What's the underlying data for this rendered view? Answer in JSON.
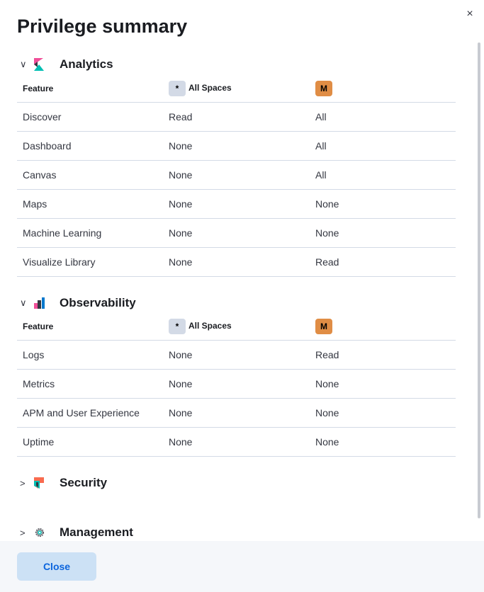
{
  "title": "Privilege summary",
  "close_icon_label": "×",
  "columns": {
    "feature": "Feature",
    "all_spaces_badge": "*",
    "all_spaces": "All Spaces",
    "space_badge": "M"
  },
  "colors": {
    "all_spaces_badge": "#d3dae6",
    "space_badge": "#e08d45",
    "close_button_bg": "#cce1f5",
    "close_button_text": "#0b64dd"
  },
  "sections": [
    {
      "title": "Analytics",
      "icon": "kibana-logo-icon",
      "expanded": true,
      "rows": [
        [
          "Discover",
          "Read",
          "All"
        ],
        [
          "Dashboard",
          "None",
          "All"
        ],
        [
          "Canvas",
          "None",
          "All"
        ],
        [
          "Maps",
          "None",
          "None"
        ],
        [
          "Machine Learning",
          "None",
          "None"
        ],
        [
          "Visualize Library",
          "None",
          "Read"
        ]
      ]
    },
    {
      "title": "Observability",
      "icon": "observability-logo-icon",
      "expanded": true,
      "rows": [
        [
          "Logs",
          "None",
          "Read"
        ],
        [
          "Metrics",
          "None",
          "None"
        ],
        [
          "APM and User Experience",
          "None",
          "None"
        ],
        [
          "Uptime",
          "None",
          "None"
        ]
      ]
    },
    {
      "title": "Security",
      "icon": "security-logo-icon",
      "expanded": false,
      "rows": []
    },
    {
      "title": "Management",
      "icon": "gear-icon",
      "expanded": false,
      "rows": []
    }
  ],
  "footer": {
    "close_label": "Close"
  }
}
